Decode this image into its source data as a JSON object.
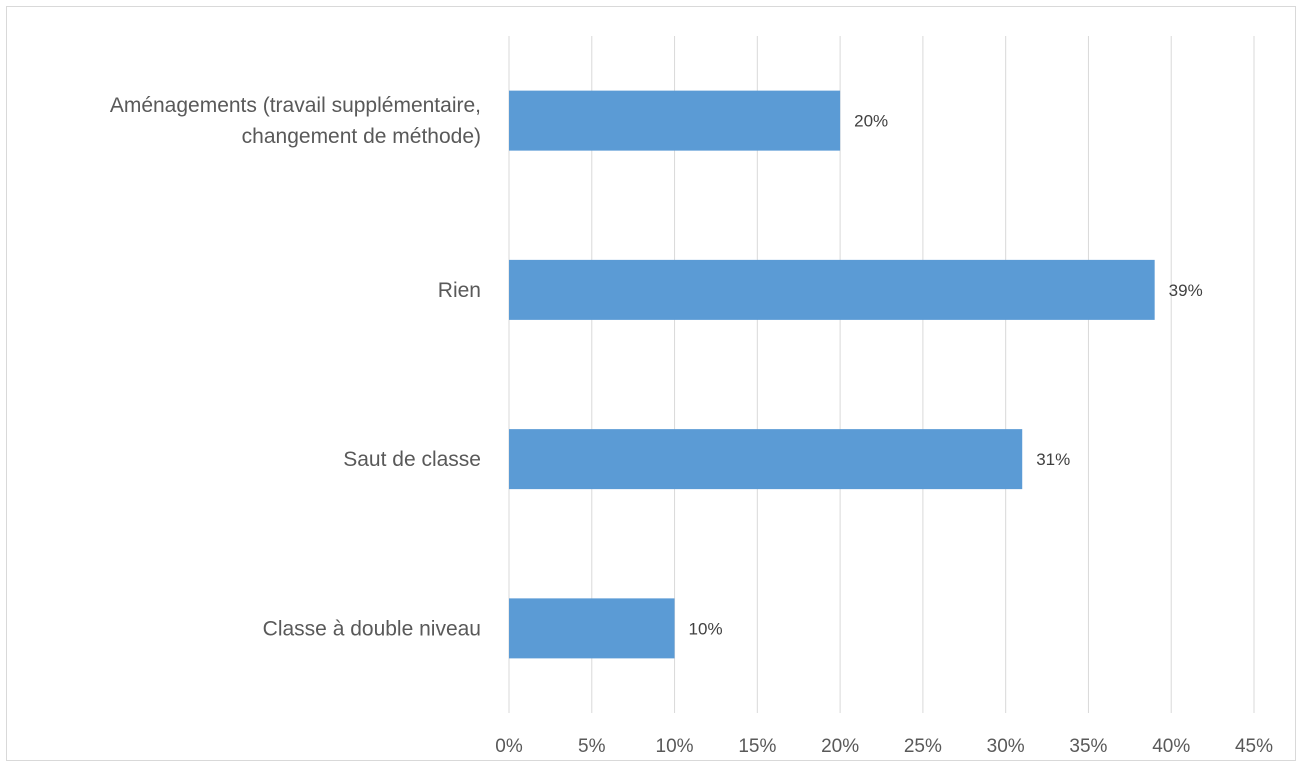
{
  "chart_data": {
    "type": "bar",
    "orientation": "horizontal",
    "categories": [
      [
        "Aménagements (travail supplémentaire,",
        "changement de méthode)"
      ],
      [
        "Rien"
      ],
      [
        "Saut de classe"
      ],
      [
        "Classe à double niveau"
      ]
    ],
    "values": [
      20,
      39,
      31,
      10
    ],
    "data_labels": [
      "20%",
      "39%",
      "31%",
      "10%"
    ],
    "x_ticks": [
      "0%",
      "5%",
      "10%",
      "15%",
      "20%",
      "25%",
      "30%",
      "35%",
      "40%",
      "45%"
    ],
    "xlim": [
      0,
      45
    ],
    "grid": "vertical",
    "legend": "none",
    "bar_color": "#5b9bd5",
    "grid_color": "#d9d9d9",
    "title": "",
    "xlabel": "",
    "ylabel": ""
  }
}
